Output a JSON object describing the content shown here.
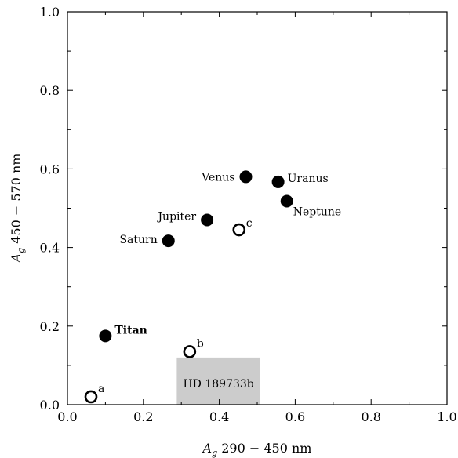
{
  "chart_data": {
    "type": "scatter",
    "title": "",
    "xlabel": "A_g  290 − 450 nm",
    "ylabel": "A_g  450 − 570 nm",
    "xlim": [
      0.0,
      1.0
    ],
    "ylim": [
      0.0,
      1.0
    ],
    "xticks": [
      "0.0",
      "0.2",
      "0.4",
      "0.6",
      "0.8",
      "1.0"
    ],
    "yticks": [
      "0.0",
      "0.2",
      "0.4",
      "0.6",
      "0.8",
      "1.0"
    ],
    "grid": false,
    "series": [
      {
        "marker": "filled-circle",
        "points": [
          {
            "label": "Venus",
            "x": 0.47,
            "y": 0.58
          },
          {
            "label": "Uranus",
            "x": 0.555,
            "y": 0.567
          },
          {
            "label": "Neptune",
            "x": 0.578,
            "y": 0.518
          },
          {
            "label": "Jupiter",
            "x": 0.368,
            "y": 0.47
          },
          {
            "label": "Saturn",
            "x": 0.266,
            "y": 0.417
          },
          {
            "label": "Titan",
            "x": 0.1,
            "y": 0.175
          }
        ]
      },
      {
        "marker": "open-circle",
        "points": [
          {
            "label": "c",
            "x": 0.452,
            "y": 0.445
          },
          {
            "label": "b",
            "x": 0.322,
            "y": 0.135
          },
          {
            "label": "a",
            "x": 0.062,
            "y": 0.02
          }
        ]
      }
    ],
    "shaded_region": {
      "label": "HD 189733b",
      "x": [
        0.288,
        0.508
      ],
      "y": [
        0.0,
        0.12
      ],
      "color": "#cccccc"
    }
  }
}
